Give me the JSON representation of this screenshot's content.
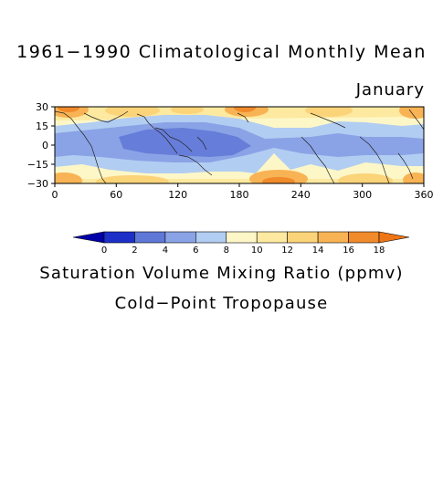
{
  "title": "1961−1990 Climatological Monthly Mean",
  "month": "January",
  "colorbar": {
    "labels": [
      "0",
      "2",
      "4",
      "6",
      "8",
      "10",
      "12",
      "14",
      "16",
      "18"
    ],
    "colors": [
      "#0000a8",
      "#1e2fc8",
      "#5f77d6",
      "#8aa3e6",
      "#b2cdf2",
      "#fdf7c8",
      "#fde9a0",
      "#fbd479",
      "#f8b354",
      "#f18a2b",
      "#ee7516"
    ]
  },
  "caption_line1": "Saturation Volume Mixing Ratio (ppmv)",
  "caption_line2": "Cold−Point Tropopause",
  "axes": {
    "x_ticks": [
      "0",
      "60",
      "120",
      "180",
      "240",
      "300",
      "360"
    ],
    "y_ticks": [
      "30",
      "15",
      "0",
      "−15",
      "−30"
    ]
  }
}
